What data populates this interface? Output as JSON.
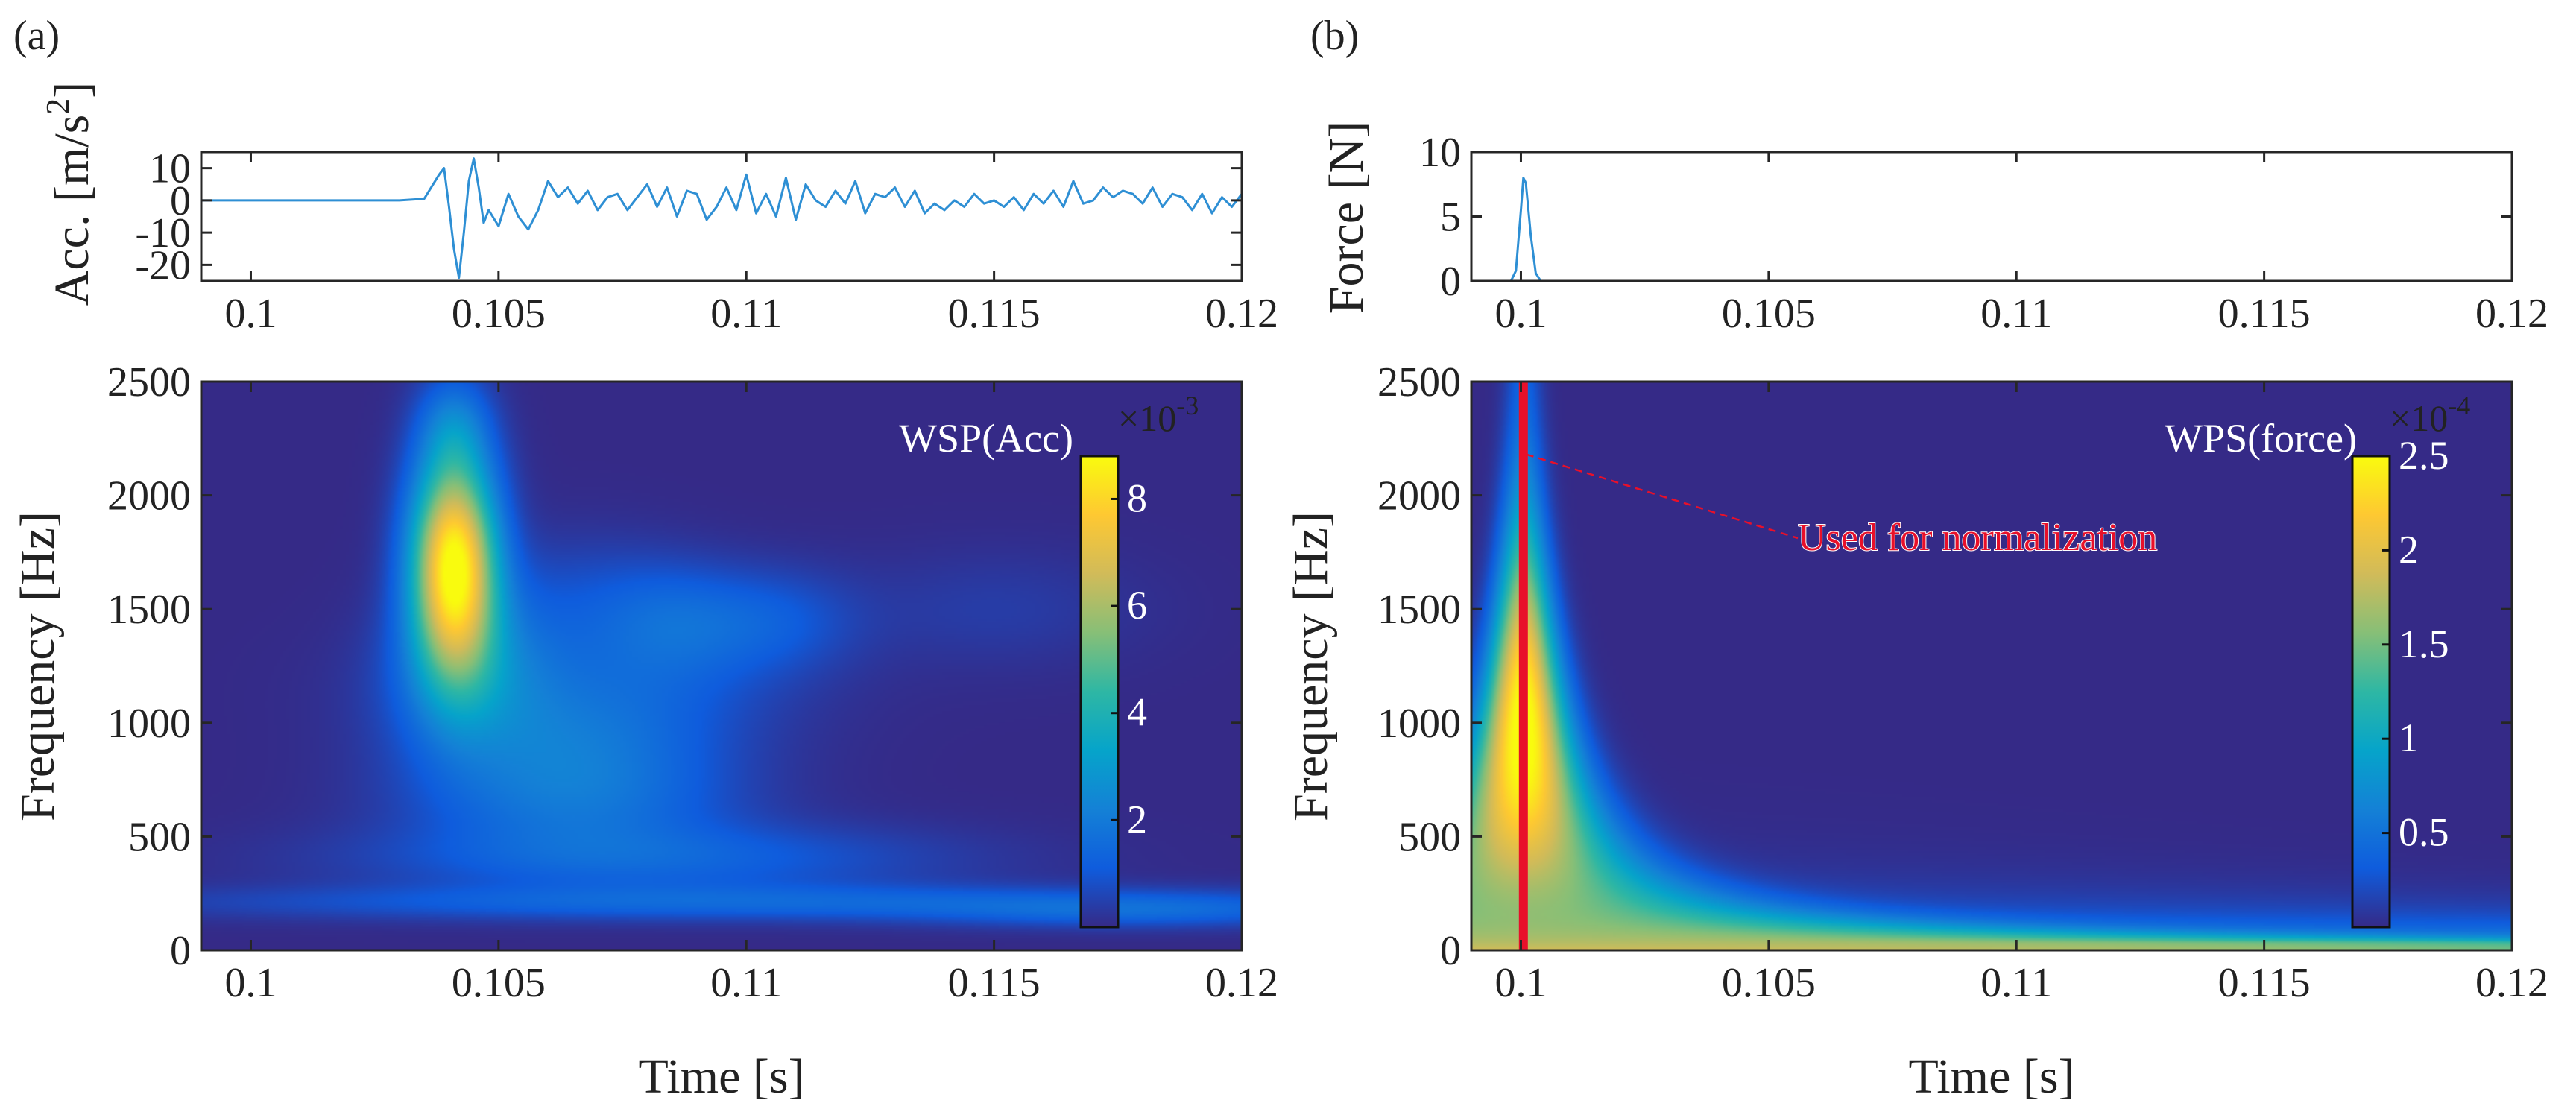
{
  "chart_data": [
    {
      "panel": "(a)",
      "type": "line",
      "ylabel": "Acc. [m/s²]",
      "xlabel": "",
      "xlim": [
        0.099,
        0.12
      ],
      "ylim": [
        -25,
        15
      ],
      "xticks": [
        "0.1",
        "0.105",
        "0.11",
        "0.115",
        "0.12"
      ],
      "yticks": [
        "10",
        "0",
        "-10",
        "-20"
      ],
      "series": [
        {
          "name": "Acc",
          "color": "#2e8fd4",
          "x": [
            0.099,
            0.1,
            0.101,
            0.102,
            0.103,
            0.1035,
            0.1038,
            0.1039,
            0.104,
            0.1041,
            0.1042,
            0.1043,
            0.1044,
            0.1045,
            0.1046,
            0.1047,
            0.1048,
            0.105,
            0.1052,
            0.1054,
            0.1056,
            0.1058,
            0.106,
            0.1062,
            0.1064,
            0.1066,
            0.1068,
            0.107,
            0.1072,
            0.1074,
            0.1076,
            0.1078,
            0.108,
            0.1082,
            0.1084,
            0.1086,
            0.1088,
            0.109,
            0.1092,
            0.1094,
            0.1096,
            0.1098,
            0.11,
            0.1102,
            0.1104,
            0.1106,
            0.1108,
            0.111,
            0.1112,
            0.1114,
            0.1116,
            0.1118,
            0.112,
            0.1122,
            0.1124,
            0.1126,
            0.1128,
            0.113,
            0.1132,
            0.1134,
            0.1136,
            0.1138,
            0.114,
            0.1142,
            0.1144,
            0.1146,
            0.1148,
            0.115,
            0.1152,
            0.1154,
            0.1156,
            0.1158,
            0.116,
            0.1162,
            0.1164,
            0.1166,
            0.1168,
            0.117,
            0.1172,
            0.1174,
            0.1176,
            0.1178,
            0.118,
            0.1182,
            0.1184,
            0.1186,
            0.1188,
            0.119,
            0.1192,
            0.1194,
            0.1196,
            0.1198,
            0.12
          ],
          "y": [
            0,
            0,
            0,
            0,
            0,
            0.5,
            8,
            10,
            -2,
            -15,
            -24,
            -10,
            6,
            13,
            4,
            -7,
            -3,
            -8,
            2,
            -5,
            -9,
            -3,
            6,
            1,
            4,
            -1,
            3,
            -3,
            1,
            2,
            -3,
            1,
            5,
            -2,
            4,
            -5,
            3,
            2,
            -6,
            -2,
            4,
            -3,
            8,
            -4,
            2,
            -5,
            7,
            -6,
            5,
            0,
            -2,
            3,
            -1,
            6,
            -4,
            2,
            1,
            4,
            -2,
            3,
            -4,
            -1,
            -3,
            0,
            -2,
            2,
            -1,
            0,
            -2,
            1,
            -3,
            2,
            -1,
            3,
            -2,
            6,
            -1,
            0,
            4,
            1,
            3,
            2,
            -1,
            4,
            -2,
            2,
            1,
            -3,
            2,
            -4,
            1,
            -2,
            2
          ]
        }
      ]
    },
    {
      "panel": "(b)",
      "type": "line",
      "ylabel": "Force [N]",
      "xlabel": "",
      "xlim": [
        0.099,
        0.12
      ],
      "ylim": [
        0,
        10
      ],
      "xticks": [
        "0.1",
        "0.105",
        "0.11",
        "0.115",
        "0.12"
      ],
      "yticks": [
        "10",
        "5",
        "0"
      ],
      "series": [
        {
          "name": "Force",
          "color": "#2e8fd4",
          "x": [
            0.099,
            0.0998,
            0.0999,
            0.1,
            0.10005,
            0.1001,
            0.1002,
            0.1003,
            0.1004,
            0.101,
            0.12
          ],
          "y": [
            0,
            0,
            0.8,
            5.5,
            8.0,
            7.6,
            3.5,
            0.6,
            0,
            0,
            0
          ]
        }
      ]
    },
    {
      "panel": "(a)",
      "type": "heatmap",
      "title": "WSP(Acc)",
      "xlabel": "Time [s]",
      "ylabel": "Frequency [Hz]",
      "xlim": [
        0.099,
        0.12
      ],
      "ylim": [
        0,
        2500
      ],
      "xticks": [
        "0.1",
        "0.105",
        "0.11",
        "0.115",
        "0.12"
      ],
      "yticks": [
        "2500",
        "2000",
        "1500",
        "1000",
        "500",
        "0"
      ],
      "colorbar": {
        "exponent": "×10",
        "power": "-3",
        "ticks": [
          "8",
          "6",
          "4",
          "2"
        ],
        "max": 8.8
      },
      "blobs": [
        {
          "t": 0.1041,
          "f": 1700,
          "st": 0.0006,
          "sf": 330,
          "amp": 8.8
        },
        {
          "t": 0.1041,
          "f": 2300,
          "st": 0.0005,
          "sf": 160,
          "amp": 1.4
        },
        {
          "t": 0.1045,
          "f": 1250,
          "st": 0.0011,
          "sf": 260,
          "amp": 1.8
        },
        {
          "t": 0.1067,
          "f": 1550,
          "st": 0.0013,
          "sf": 200,
          "amp": 0.6
        },
        {
          "t": 0.1085,
          "f": 1450,
          "st": 0.0011,
          "sf": 180,
          "amp": 1.1
        },
        {
          "t": 0.1105,
          "f": 1450,
          "st": 0.0012,
          "sf": 160,
          "amp": 1.0
        },
        {
          "t": 0.115,
          "f": 1500,
          "st": 0.002,
          "sf": 180,
          "amp": 0.4
        },
        {
          "t": 0.107,
          "f": 1150,
          "st": 0.0025,
          "sf": 200,
          "amp": 1.0
        },
        {
          "t": 0.1065,
          "f": 900,
          "st": 0.002,
          "sf": 170,
          "amp": 1.2
        },
        {
          "t": 0.1065,
          "f": 650,
          "st": 0.0022,
          "sf": 160,
          "amp": 1.5
        },
        {
          "t": 0.108,
          "f": 400,
          "st": 0.004,
          "sf": 110,
          "amp": 1.3
        },
        {
          "t": 0.11,
          "f": 210,
          "st": 0.008,
          "sf": 55,
          "amp": 1.3
        },
        {
          "t": 0.118,
          "f": 170,
          "st": 0.003,
          "sf": 50,
          "amp": 1.1
        }
      ]
    },
    {
      "panel": "(b)",
      "type": "heatmap",
      "title": "WPS(force)",
      "xlabel": "Time [s]",
      "ylabel": "Frequency [Hz]",
      "xlim": [
        0.099,
        0.12
      ],
      "ylim": [
        0,
        2500
      ],
      "xticks": [
        "0.1",
        "0.105",
        "0.11",
        "0.115",
        "0.12"
      ],
      "yticks": [
        "2500",
        "2000",
        "1500",
        "1000",
        "500",
        "0"
      ],
      "colorbar": {
        "exponent": "×10",
        "power": "-4",
        "ticks": [
          "2.5",
          "2",
          "1.5",
          "1",
          "0.5"
        ],
        "max": 2.5
      },
      "source": {
        "t": 0.10005,
        "peak_f": 950,
        "amp": 2.45
      },
      "annotation": {
        "text": "Used  for normalization",
        "t": 0.10005,
        "f": 2180,
        "line_color": "#e8102a"
      }
    }
  ]
}
